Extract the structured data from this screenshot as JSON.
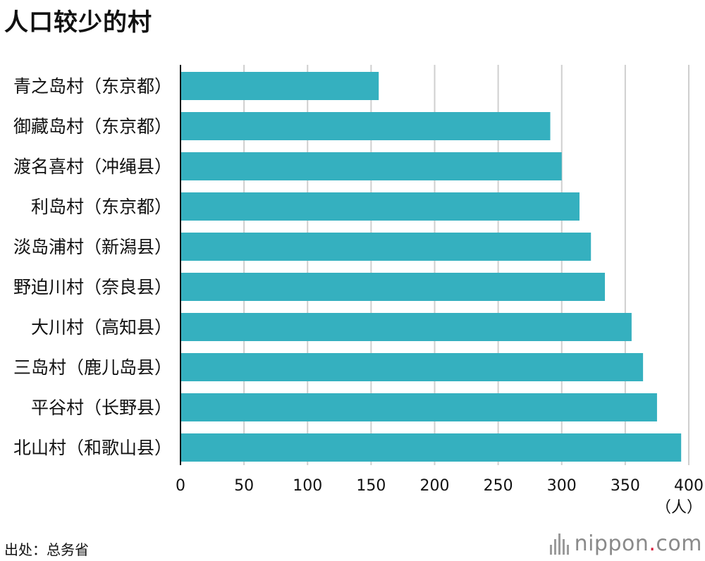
{
  "title": "人口较少的村",
  "source": "出处：总务省",
  "brand": {
    "name": "nippon",
    "dot": ".",
    "suffix": "com"
  },
  "colors": {
    "bar": "#35b0bf",
    "grid": "#cfcfcf",
    "axis": "#111111"
  },
  "chart_data": {
    "type": "bar",
    "orientation": "horizontal",
    "title": "人口较少的村",
    "categories": [
      "青之岛村（东京都）",
      "御藏岛村（东京都）",
      "渡名喜村（冲绳县）",
      "利岛村（东京都）",
      "淡岛浦村（新潟县）",
      "野迫川村（奈良县）",
      "大川村（高知县）",
      "三岛村（鹿儿岛县）",
      "平谷村（长野县）",
      "北山村（和歌山县）"
    ],
    "values": [
      156,
      291,
      300,
      314,
      323,
      334,
      355,
      364,
      375,
      394
    ],
    "xlim": [
      0,
      400
    ],
    "xticks": [
      0,
      50,
      100,
      150,
      200,
      250,
      300,
      350,
      400
    ],
    "xunit": "（人）",
    "grid": true
  }
}
